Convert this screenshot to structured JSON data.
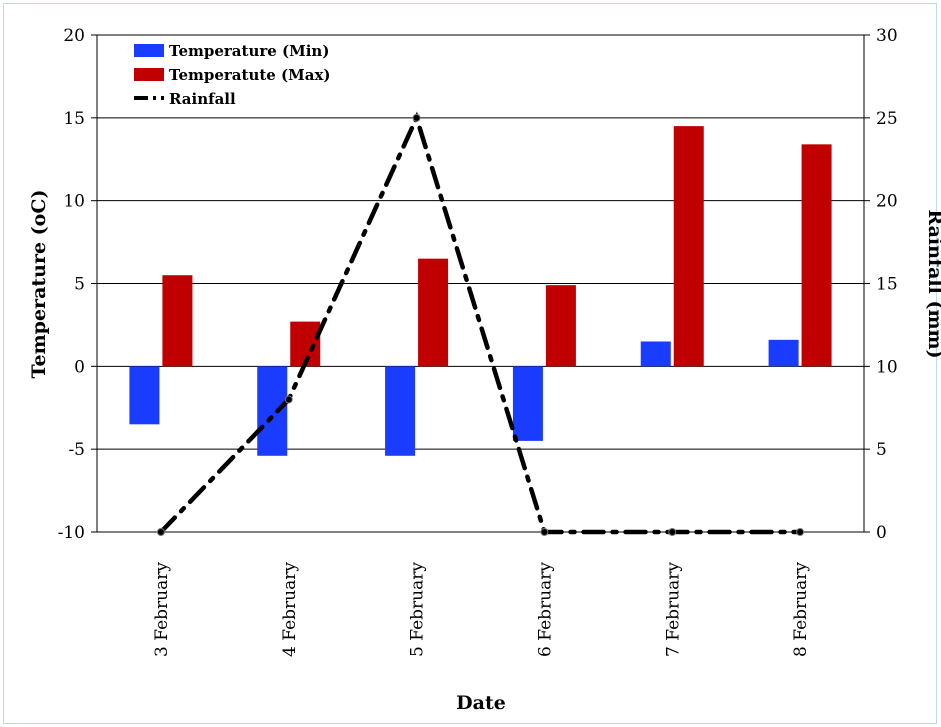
{
  "chart_data": {
    "type": "bar",
    "categories": [
      "3 February",
      "4 February",
      "5 February",
      "6 February",
      "7 February",
      "8 February"
    ],
    "series": [
      {
        "name": "Temperature (Min)",
        "type": "bar",
        "axis": "left",
        "color": "#1a3cff",
        "values": [
          -3.5,
          -5.4,
          -5.4,
          -4.5,
          1.5,
          1.6
        ]
      },
      {
        "name": "Temperatute (Max)",
        "type": "bar",
        "axis": "left",
        "color": "#c00000",
        "values": [
          5.5,
          2.7,
          6.5,
          4.9,
          14.5,
          13.4
        ]
      },
      {
        "name": "Rainfall",
        "type": "line",
        "axis": "right",
        "color": "#000000",
        "values": [
          0,
          8,
          25,
          0,
          0,
          0
        ]
      }
    ],
    "xlabel": "Date",
    "ylabel": "Temperature (oC)",
    "y2label": "Rainfall (mm)",
    "ylim": [
      -10,
      20
    ],
    "y2lim": [
      0,
      30
    ],
    "yticks": [
      "20",
      "15",
      "10",
      "5",
      "0",
      "-5",
      "-10"
    ],
    "y2ticks": [
      "30",
      "25",
      "20",
      "15",
      "10",
      "5",
      "0"
    ],
    "grid": true,
    "legend_position": "top-left"
  }
}
